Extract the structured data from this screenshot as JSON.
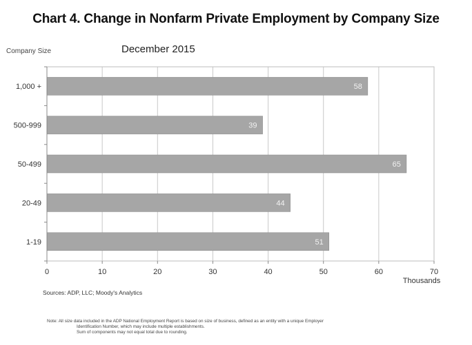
{
  "chart_data": {
    "type": "bar",
    "orientation": "horizontal",
    "title": "Chart 4. Change in Nonfarm Private Employment by Company Size",
    "subtitle": "December 2015",
    "ylabel": "Company Size",
    "xlabel": "Thousands",
    "categories": [
      "1,000 +",
      "500-999",
      "50-499",
      "20-49",
      "1-19"
    ],
    "values": [
      58,
      39,
      65,
      44,
      51
    ],
    "data_labels": [
      "58",
      "39",
      "65",
      "44",
      "51"
    ],
    "xlim": [
      0,
      70
    ],
    "xticks": [
      0,
      10,
      20,
      30,
      40,
      50,
      60,
      70
    ],
    "xtick_labels": [
      "0",
      "10",
      "20",
      "30",
      "40",
      "50",
      "60",
      "70"
    ],
    "grid": true,
    "bar_color": "#a6a6a6",
    "grid_color": "#c8c8c8"
  },
  "source": "Sources: ADP, LLC; Moody's Analytics",
  "note_lines": [
    "Note: All size data included in the ADP National Employment Report is based on size of business, defined as an entity with a unique Employer",
    "Identification Number, which may include multiple establishments.",
    "Sum of components may not equal total due to rounding."
  ]
}
